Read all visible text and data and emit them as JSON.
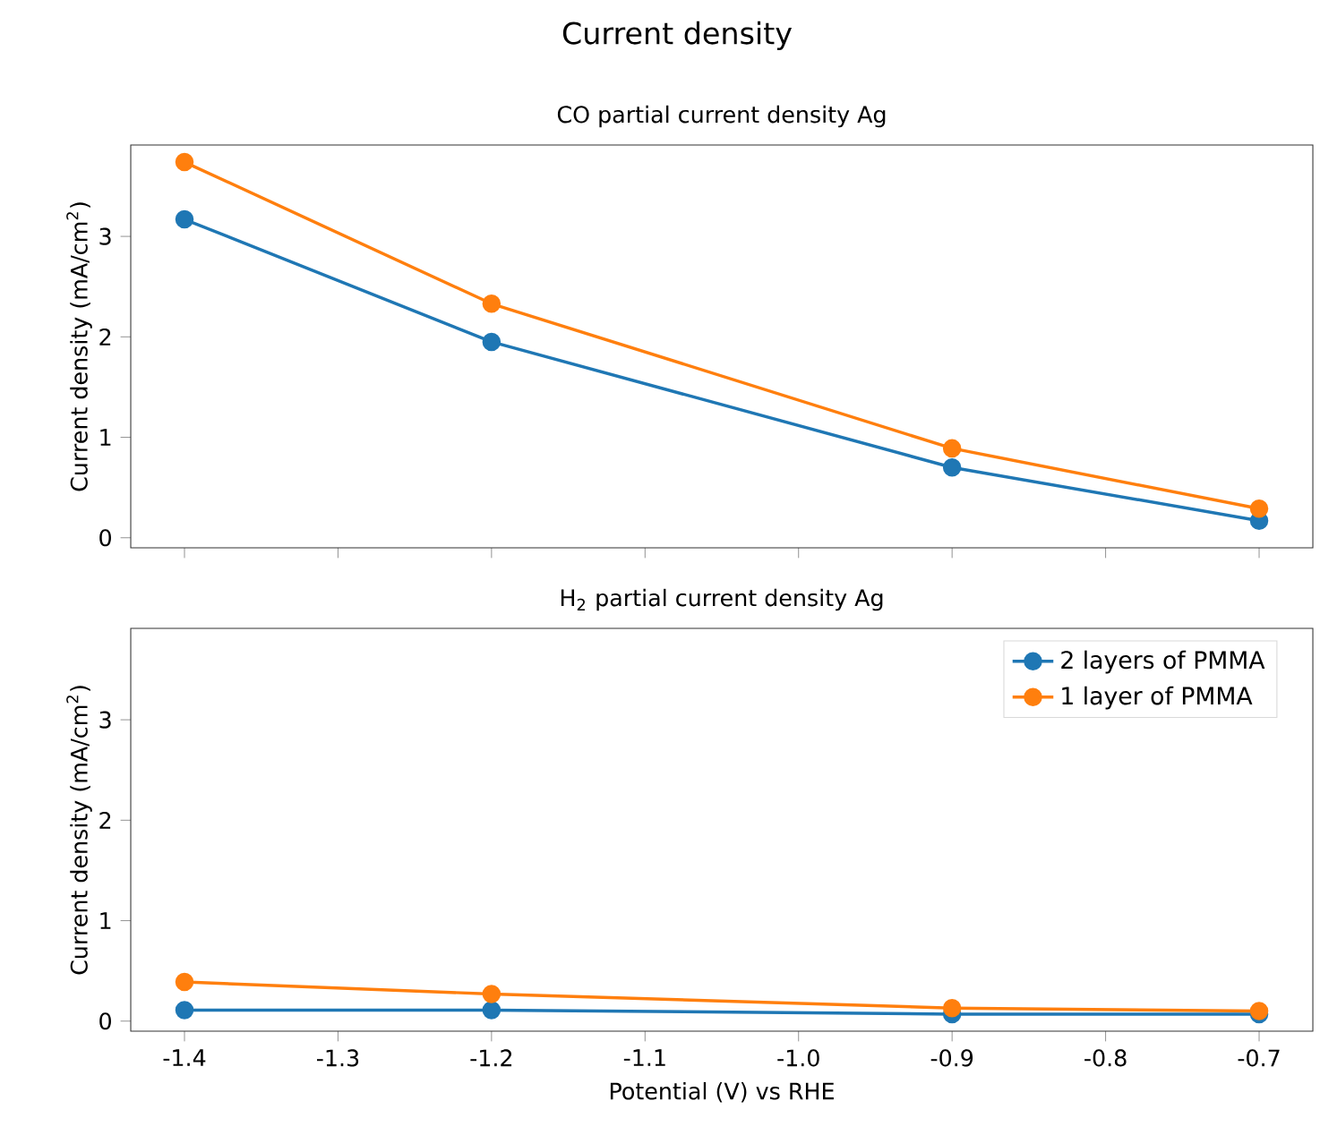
{
  "chart_data": [
    {
      "type": "line",
      "title": "Current density",
      "subtitle": "CO partial current density Ag",
      "ylabel": "Current density (mA/cm$^{2}$)",
      "x": [
        -1.4,
        -1.2,
        -0.9,
        -0.7
      ],
      "xlim": [
        -1.435,
        -0.665
      ],
      "ylim": [
        -0.1,
        3.91
      ],
      "xticks": [
        -1.4,
        -1.3,
        -1.2,
        -1.1,
        -1.0,
        -0.9,
        -0.8,
        -0.7
      ],
      "yticks": [
        0,
        1,
        2,
        3
      ],
      "tick_labels": "y",
      "marker": "circle",
      "series": [
        {
          "color": "#1f77b4",
          "values": [
            3.17,
            1.95,
            0.7,
            0.17
          ]
        },
        {
          "color": "#ff7f0e",
          "values": [
            3.74,
            2.33,
            0.89,
            0.29
          ]
        }
      ]
    },
    {
      "type": "line",
      "subtitle": "H$_{2}$ partial current density Ag",
      "xlabel": "Potential (V) vs RHE",
      "ylabel": "Current density (mA/cm$^{2}$)",
      "x": [
        -1.4,
        -1.2,
        -0.9,
        -0.7
      ],
      "xlim": [
        -1.435,
        -0.665
      ],
      "ylim": [
        -0.1,
        3.91
      ],
      "xticks": [
        -1.4,
        -1.3,
        -1.2,
        -1.1,
        {
          "value": -1.0,
          "label": "-1.0"
        },
        -0.9,
        -0.8,
        -0.7
      ],
      "yticks": [
        0,
        1,
        2,
        3
      ],
      "marker": "circle",
      "legend": "top right",
      "series": [
        {
          "name": "2 layers of PMMA",
          "color": "#1f77b4",
          "values": [
            0.11,
            0.11,
            0.07,
            0.07
          ]
        },
        {
          "name": "1 layer of PMMA",
          "color": "#ff7f0e",
          "values": [
            0.39,
            0.27,
            0.13,
            0.1
          ]
        }
      ]
    }
  ]
}
